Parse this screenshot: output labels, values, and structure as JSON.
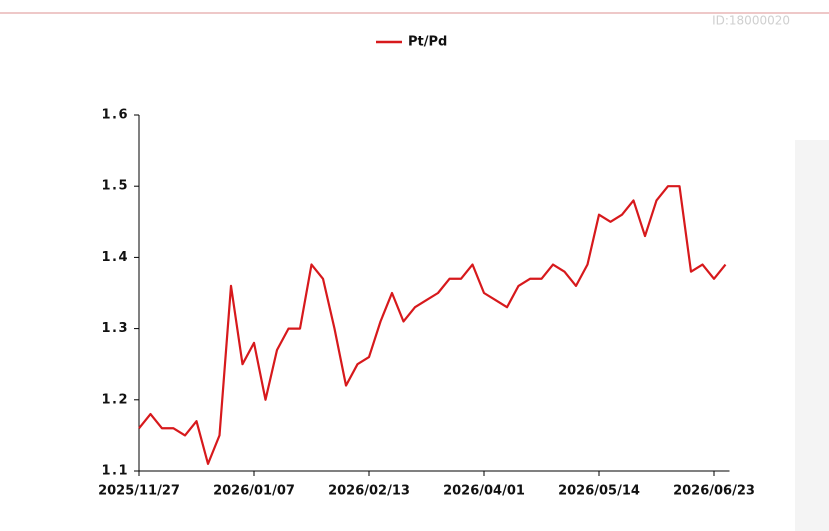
{
  "chart_data": {
    "type": "line",
    "watermark": "ID:18000020",
    "categories": [
      "2025/11/27",
      null,
      null,
      null,
      null,
      null,
      null,
      null,
      null,
      null,
      "2026/01/07",
      null,
      null,
      null,
      null,
      null,
      null,
      null,
      null,
      null,
      "2026/02/13",
      null,
      null,
      null,
      null,
      null,
      null,
      null,
      null,
      null,
      "2026/04/01",
      null,
      null,
      null,
      null,
      null,
      null,
      null,
      null,
      null,
      "2026/05/14",
      null,
      null,
      null,
      null,
      null,
      null,
      null,
      null,
      null,
      "2026/06/23",
      null
    ],
    "series": [
      {
        "name": "Pt/Pd",
        "color": "#d7191c",
        "values": [
          1.16,
          1.18,
          1.16,
          1.16,
          1.15,
          1.17,
          1.11,
          1.15,
          1.36,
          1.25,
          1.28,
          1.2,
          1.27,
          1.3,
          1.3,
          1.39,
          1.37,
          1.3,
          1.22,
          1.25,
          1.26,
          1.31,
          1.35,
          1.31,
          1.33,
          1.34,
          1.35,
          1.37,
          1.37,
          1.39,
          1.35,
          1.34,
          1.33,
          1.36,
          1.37,
          1.37,
          1.39,
          1.38,
          1.36,
          1.39,
          1.46,
          1.45,
          1.46,
          1.48,
          1.43,
          1.48,
          1.5,
          1.5,
          1.38,
          1.39,
          1.37,
          1.39
        ]
      }
    ],
    "ylim": [
      1.1,
      1.6
    ],
    "yticks": [
      1.1,
      1.2,
      1.3,
      1.4,
      1.5,
      1.6
    ]
  }
}
